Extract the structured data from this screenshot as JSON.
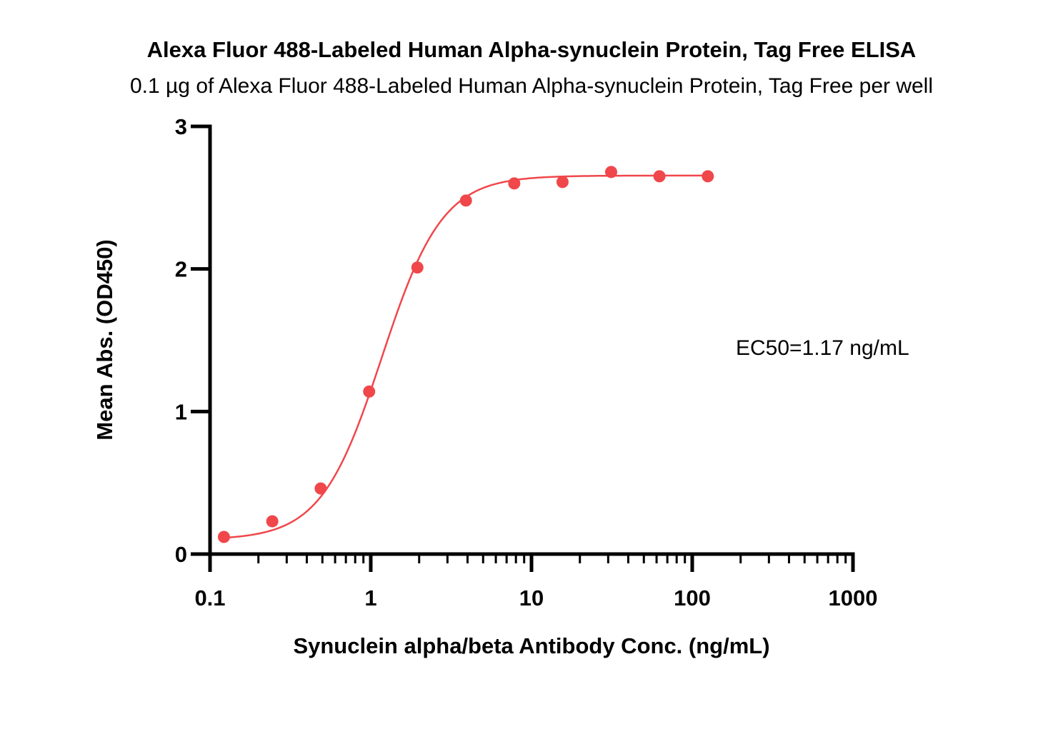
{
  "chart_data": {
    "type": "scatter",
    "title": "Alexa Fluor 488-Labeled Human Alpha-synuclein Protein, Tag Free ELISA",
    "subtitle": "0.1 µg of Alexa Fluor 488-Labeled Human Alpha-synuclein Protein, Tag Free per well",
    "xlabel": "Synuclein alpha/beta Antibody Conc. (ng/mL)",
    "ylabel": "Mean Abs. (OD450)",
    "xscale": "log",
    "xlim": [
      0.1,
      1000
    ],
    "ylim": [
      0,
      3
    ],
    "xticks": [
      0.1,
      1,
      10,
      100,
      1000
    ],
    "xtick_labels": [
      "0.1",
      "1",
      "10",
      "100",
      "1000"
    ],
    "yticks": [
      0,
      1,
      2,
      3
    ],
    "ytick_labels": [
      "0",
      "1",
      "2",
      "3"
    ],
    "grid": false,
    "color": "#f0474b",
    "series": [
      {
        "x": [
          0.122,
          0.244,
          0.488,
          0.977,
          1.95,
          3.91,
          7.81,
          15.6,
          31.3,
          62.5,
          125
        ],
        "y": [
          0.12,
          0.23,
          0.46,
          1.14,
          2.01,
          2.48,
          2.6,
          2.61,
          2.68,
          2.65,
          2.65
        ]
      }
    ],
    "fit": {
      "bottom": 0.1,
      "top": 2.655,
      "ec50": 1.17,
      "hill": 2.3
    },
    "annotation": "EC50=1.17 ng/mL"
  }
}
